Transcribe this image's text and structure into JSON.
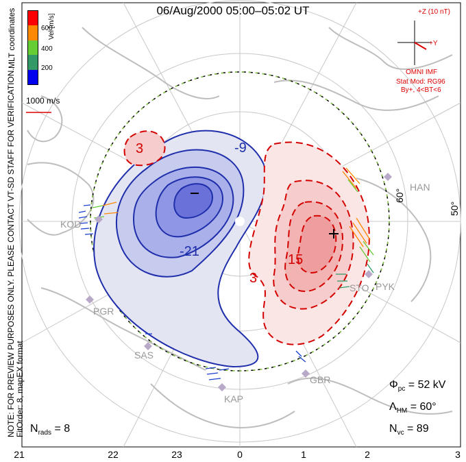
{
  "title": "06/Aug/2000 05:00–05:02 UT",
  "notes": {
    "preview": "NOTE: FOR PREVIEW PURPOSES ONLY. PLEASE CONTACT VT-SD STAFF FOR VERIFICATION.",
    "fit": "FitOrder: 8, mapEX format",
    "coords": "MLT coordinates"
  },
  "colorbar": {
    "label": "Vel [m/s]",
    "ticks": [
      "600",
      "400",
      "200"
    ],
    "colors": [
      "#ff0000",
      "#ff8800",
      "#66cc33",
      "#339966",
      "#0000ee"
    ],
    "scale_label": "1000 m/s"
  },
  "imf": {
    "z_label": "+Z (10 nT)",
    "y_label": "+Y",
    "source": "OMNI IMF",
    "stat_mod": "Stat Mod: RG96",
    "condition": "By+, 4<BT<6"
  },
  "contour_labels": [
    "-9",
    "-21",
    "3",
    "3",
    "15"
  ],
  "lat_labels": [
    "60°",
    "50°"
  ],
  "stations": [
    "KOD",
    "PGR",
    "SAS",
    "KAP",
    "GBR",
    "STO",
    "PYK",
    "HAN"
  ],
  "mlt_labels": [
    "21",
    "22",
    "23",
    "0",
    "1",
    "2",
    "3"
  ],
  "stats": {
    "phi_sym": "Φ",
    "phi_sub": "pc",
    "phi_val": " = 52 kV",
    "lam_sym": "Λ",
    "lam_sub": "HM",
    "lam_val": " = 60°",
    "nvc_sym": "N",
    "nvc_sub": "vc",
    "nvc_val": " = 89",
    "nrads_sym": "N",
    "nrads_sub": "rads",
    "nrads_val": " = 8"
  }
}
